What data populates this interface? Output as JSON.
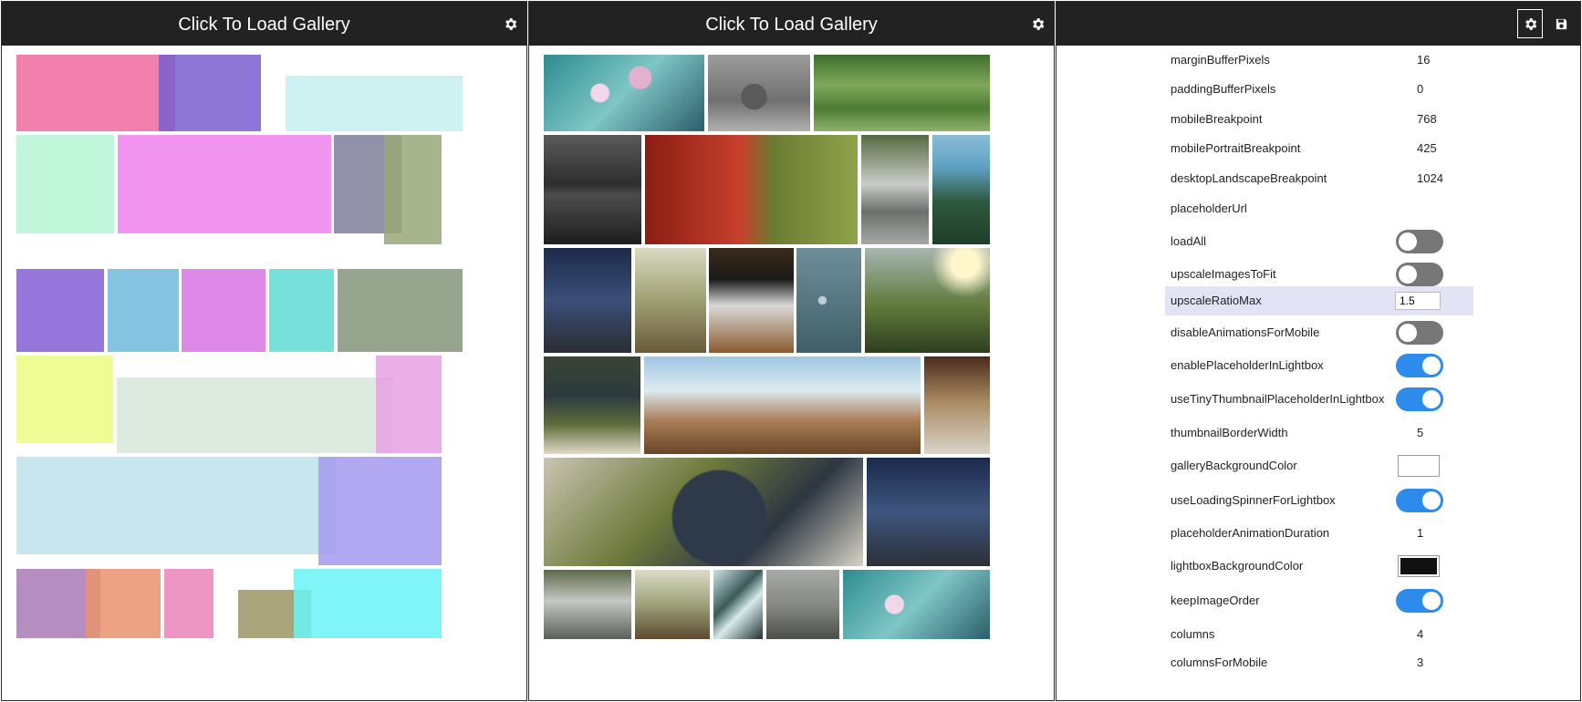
{
  "panels": [
    {
      "title": "Click To Load Gallery"
    },
    {
      "title": "Click To Load Gallery"
    }
  ],
  "settings_panel": {
    "gear_icon": "gear-icon",
    "save_icon": "save-icon",
    "rows": [
      {
        "label": "marginBufferPixels",
        "type": "text",
        "value": "16"
      },
      {
        "label": "paddingBufferPixels",
        "type": "text",
        "value": "0"
      },
      {
        "label": "mobileBreakpoint",
        "type": "text",
        "value": "768"
      },
      {
        "label": "mobilePortraitBreakpoint",
        "type": "text",
        "value": "425"
      },
      {
        "label": "desktopLandscapeBreakpoint",
        "type": "text",
        "value": "1024"
      },
      {
        "label": "placeholderUrl",
        "type": "text",
        "value": ""
      },
      {
        "label": "loadAll",
        "type": "toggle",
        "on": false
      },
      {
        "label": "upscaleImagesToFit",
        "type": "toggle",
        "on": false
      },
      {
        "label": "upscaleRatioMax",
        "type": "input",
        "value": "1.5",
        "highlighted": true
      },
      {
        "label": "disableAnimationsForMobile",
        "type": "toggle",
        "on": false
      },
      {
        "label": "enablePlaceholderInLightbox",
        "type": "toggle",
        "on": true
      },
      {
        "label": "useTinyThumbnailPlaceholderInLightbox",
        "type": "toggle",
        "on": true
      },
      {
        "label": "thumbnailBorderWidth",
        "type": "text",
        "value": "5"
      },
      {
        "label": "galleryBackgroundColor",
        "type": "color",
        "color": "#ffffff"
      },
      {
        "label": "useLoadingSpinnerForLightbox",
        "type": "toggle",
        "on": true
      },
      {
        "label": "placeholderAnimationDuration",
        "type": "text",
        "value": "1"
      },
      {
        "label": "lightboxBackgroundColor",
        "type": "color",
        "color": "#111111"
      },
      {
        "label": "keepImageOrder",
        "type": "toggle",
        "on": true
      },
      {
        "label": "columns",
        "type": "text",
        "value": "4"
      },
      {
        "label": "columnsForMobile",
        "type": "text",
        "value": "3"
      }
    ]
  },
  "colors": {
    "header_bg": "#222222",
    "toggle_on": "#2d8ceb",
    "toggle_off": "#777777",
    "highlight_row": "#e3e3f6"
  },
  "placeholder_blocks": [
    "#f06a9f",
    "#7a5ed0",
    "#c5f0f0",
    "#b5f5d3",
    "#ef82ee",
    "#7e7f99",
    "#97a877",
    "#855ed6",
    "#6ebada",
    "#d874e6",
    "#5fdbd5",
    "#86957a",
    "#ecfc82",
    "#d6e6d9",
    "#e7a1e3",
    "#bde2ea",
    "#a499ef",
    "#a879b6",
    "#ea926d",
    "#eb84b8",
    "#9c9565",
    "#6af3f6"
  ],
  "photos": [
    "cherry-blossom-photo",
    "pinecones-photo",
    "grass-field-photo",
    "city-bridge-night-photo",
    "red-door-grass-photo",
    "waterfall-rocks-photo",
    "lake-forest-photo",
    "bridge-tower-photo",
    "boardwalk-photo",
    "laptop-desk-photo",
    "water-drops-photo",
    "sunny-meadow-photo",
    "grapes-vine-photo",
    "desert-hills-photo",
    "desk-notebook-photo",
    "grape-cluster-photo",
    "bridge-tower-photo-2",
    "waterfall-photo-2",
    "boardwalk-photo-2",
    "abstract-lines-photo",
    "foggy-hills-photo",
    "cherry-blossom-photo-2"
  ]
}
